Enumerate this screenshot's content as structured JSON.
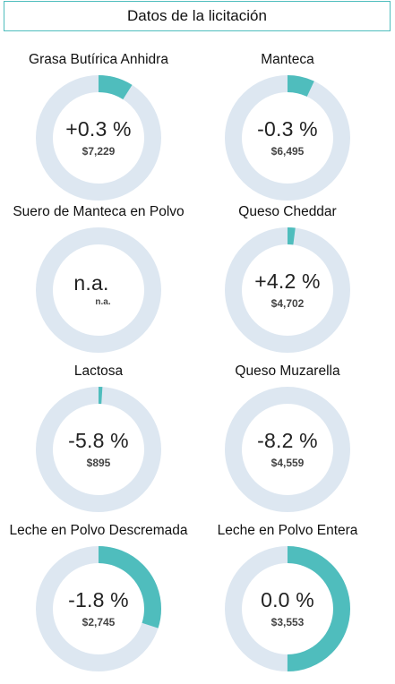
{
  "header": {
    "title": "Datos de la licitación"
  },
  "colors": {
    "track": "#dde7f1",
    "fill": "#4fbdbd"
  },
  "cards": [
    {
      "name": "Grasa Butírica Anhidra",
      "change": "+0.3 %",
      "price": "$7,229",
      "progress": 0.09
    },
    {
      "name": "Manteca",
      "change": "-0.3 %",
      "price": "$6,495",
      "progress": 0.07
    },
    {
      "name": "Suero de Manteca en Polvo",
      "change": "n.a.",
      "price": "n.a.",
      "progress": 0
    },
    {
      "name": "Queso Cheddar",
      "change": "+4.2 %",
      "price": "$4,702",
      "progress": 0.02
    },
    {
      "name": "Lactosa",
      "change": "-5.8 %",
      "price": "$895",
      "progress": 0.01
    },
    {
      "name": "Queso Muzarella",
      "change": "-8.2 %",
      "price": "$4,559",
      "progress": 0
    },
    {
      "name": "Leche en Polvo Descremada",
      "change": "-1.8 %",
      "price": "$2,745",
      "progress": 0.3
    },
    {
      "name": "Leche en Polvo Entera",
      "change": "0.0 %",
      "price": "$3,553",
      "progress": 0.5
    }
  ]
}
